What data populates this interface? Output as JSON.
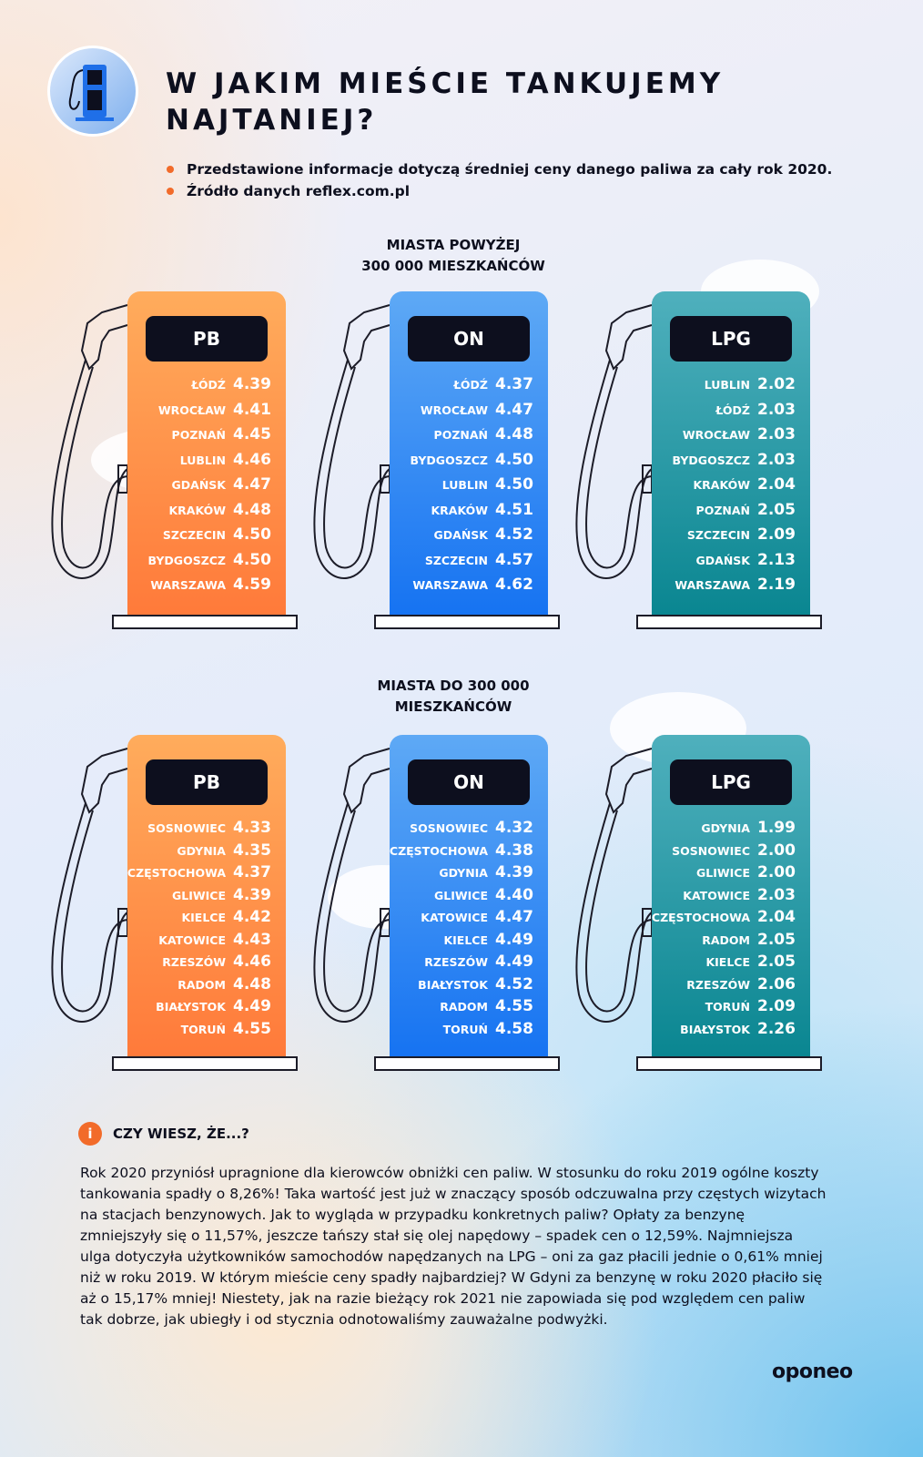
{
  "header": {
    "title": "W JAKIM MIEŚCIE TANKUJEMY NAJTANIEJ?",
    "bullets": [
      "Przedstawione informacje dotyczą średniej ceny danego paliwa za cały rok 2020.",
      "Źródło danych reflex.com.pl"
    ]
  },
  "colors": {
    "accent": "#f26b2a",
    "pb": "#ff8a45",
    "on": "#1f7cf2",
    "lpg": "#138c97",
    "dark": "#0d0f1e"
  },
  "sections": [
    {
      "title_line1": "MIASTA POWYŻEJ",
      "title_line2": "300 000 MIESZKAŃCÓW",
      "pumps": [
        {
          "fuel": "PB",
          "rows": [
            [
              "ŁÓDŹ",
              "4.39"
            ],
            [
              "WROCŁAW",
              "4.41"
            ],
            [
              "POZNAŃ",
              "4.45"
            ],
            [
              "LUBLIN",
              "4.46"
            ],
            [
              "GDAŃSK",
              "4.47"
            ],
            [
              "KRAKÓW",
              "4.48"
            ],
            [
              "SZCZECIN",
              "4.50"
            ],
            [
              "BYDGOSZCZ",
              "4.50"
            ],
            [
              "WARSZAWA",
              "4.59"
            ]
          ]
        },
        {
          "fuel": "ON",
          "rows": [
            [
              "ŁÓDŹ",
              "4.37"
            ],
            [
              "WROCŁAW",
              "4.47"
            ],
            [
              "POZNAŃ",
              "4.48"
            ],
            [
              "BYDGOSZCZ",
              "4.50"
            ],
            [
              "LUBLIN",
              "4.50"
            ],
            [
              "KRAKÓW",
              "4.51"
            ],
            [
              "GDAŃSK",
              "4.52"
            ],
            [
              "SZCZECIN",
              "4.57"
            ],
            [
              "WARSZAWA",
              "4.62"
            ]
          ]
        },
        {
          "fuel": "LPG",
          "rows": [
            [
              "LUBLIN",
              "2.02"
            ],
            [
              "ŁÓDŹ",
              "2.03"
            ],
            [
              "WROCŁAW",
              "2.03"
            ],
            [
              "BYDGOSZCZ",
              "2.03"
            ],
            [
              "KRAKÓW",
              "2.04"
            ],
            [
              "POZNAŃ",
              "2.05"
            ],
            [
              "SZCZECIN",
              "2.09"
            ],
            [
              "GDAŃSK",
              "2.13"
            ],
            [
              "WARSZAWA",
              "2.19"
            ]
          ]
        }
      ]
    },
    {
      "title_line1": "MIASTA DO 300 000",
      "title_line2": "MIESZKAŃCÓW",
      "pumps": [
        {
          "fuel": "PB",
          "rows": [
            [
              "SOSNOWIEC",
              "4.33"
            ],
            [
              "GDYNIA",
              "4.35"
            ],
            [
              "CZĘSTOCHOWA",
              "4.37"
            ],
            [
              "GLIWICE",
              "4.39"
            ],
            [
              "KIELCE",
              "4.42"
            ],
            [
              "KATOWICE",
              "4.43"
            ],
            [
              "RZESZÓW",
              "4.46"
            ],
            [
              "RADOM",
              "4.48"
            ],
            [
              "BIAŁYSTOK",
              "4.49"
            ],
            [
              "TORUŃ",
              "4.55"
            ]
          ]
        },
        {
          "fuel": "ON",
          "rows": [
            [
              "SOSNOWIEC",
              "4.32"
            ],
            [
              "CZĘSTOCHOWA",
              "4.38"
            ],
            [
              "GDYNIA",
              "4.39"
            ],
            [
              "GLIWICE",
              "4.40"
            ],
            [
              "KATOWICE",
              "4.47"
            ],
            [
              "KIELCE",
              "4.49"
            ],
            [
              "RZESZÓW",
              "4.49"
            ],
            [
              "BIAŁYSTOK",
              "4.52"
            ],
            [
              "RADOM",
              "4.55"
            ],
            [
              "TORUŃ",
              "4.58"
            ]
          ]
        },
        {
          "fuel": "LPG",
          "rows": [
            [
              "GDYNIA",
              "1.99"
            ],
            [
              "SOSNOWIEC",
              "2.00"
            ],
            [
              "GLIWICE",
              "2.00"
            ],
            [
              "KATOWICE",
              "2.03"
            ],
            [
              "CZĘSTOCHOWA",
              "2.04"
            ],
            [
              "RADOM",
              "2.05"
            ],
            [
              "KIELCE",
              "2.05"
            ],
            [
              "RZESZÓW",
              "2.06"
            ],
            [
              "TORUŃ",
              "2.09"
            ],
            [
              "BIAŁYSTOK",
              "2.26"
            ]
          ]
        }
      ]
    }
  ],
  "info": {
    "icon": "info-icon",
    "icon_glyph": "i",
    "title": "CZY WIESZ, ŻE...?",
    "text": "Rok 2020 przyniósł upragnione dla kierowców obniżki cen paliw. W stosunku do roku 2019 ogólne koszty tankowania spadły o 8,26%! Taka wartość jest już w znaczący sposób odczuwalna przy częstych wizytach na stacjach benzynowych. Jak to wygląda w przypadku konkretnych paliw? Opłaty za benzynę zmniejszyły się o 11,57%, jeszcze tańszy stał się olej napędowy – spadek cen o 12,59%. Najmniejsza ulga dotyczyła użytkowników samochodów napędzanych na LPG – oni za gaz płacili jednie o 0,61% mniej niż w roku 2019. W którym mieście ceny spadły najbardziej? W Gdyni za benzynę w roku 2020 płaciło się aż o 15,17% mniej! Niestety, jak na razie bieżący rok 2021 nie zapowiada się pod względem cen paliw tak dobrze, jak ubiegły i od stycznia odnotowaliśmy zauważalne podwyżki."
  },
  "brand": "oponeo"
}
